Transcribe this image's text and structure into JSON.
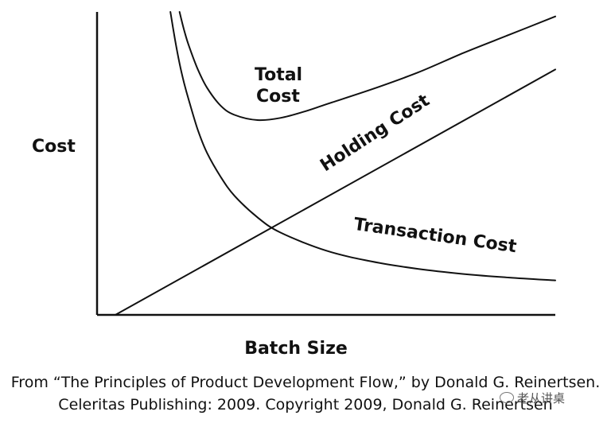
{
  "chart_data": {
    "type": "line",
    "title": "",
    "xlabel": "Batch Size",
    "ylabel": "Cost",
    "xlim": [
      0,
      100
    ],
    "ylim": [
      0,
      100
    ],
    "series": [
      {
        "name": "Holding Cost",
        "x": [
          4,
          100
        ],
        "y": [
          0,
          81
        ]
      },
      {
        "name": "Transaction Cost",
        "x": [
          16,
          17,
          18,
          19,
          20,
          22,
          24,
          27,
          30,
          35,
          40,
          50,
          60,
          70,
          80,
          90,
          100
        ],
        "y": [
          100,
          91,
          83,
          76.5,
          71,
          61,
          53.5,
          45.5,
          39.3,
          32.2,
          27.2,
          21.2,
          17.6,
          15.2,
          13.5,
          12.3,
          11.4
        ]
      },
      {
        "name": "Total Cost",
        "x": [
          18,
          19,
          20,
          22,
          24,
          27,
          30,
          35,
          40,
          45,
          50,
          60,
          70,
          80,
          90,
          100
        ],
        "y": [
          100,
          94,
          89,
          81,
          75,
          69,
          66,
          64.3,
          65,
          67,
          69.5,
          74.5,
          80,
          86.5,
          92.5,
          98.5
        ]
      }
    ],
    "labels": {
      "total_cost_line1": "Total",
      "total_cost_line2": "Cost",
      "holding_cost": "Holding Cost",
      "transaction_cost": "Transaction Cost"
    }
  },
  "caption": {
    "line1": "From “The Principles of Product Development Flow,” by Donald G. Reinertsen.",
    "line2": "Celeritas Publishing: 2009. Copyright 2009, Donald G. Reinertsen"
  },
  "watermark": {
    "text": "老从讲桌",
    "icon": "wechat-icon"
  }
}
